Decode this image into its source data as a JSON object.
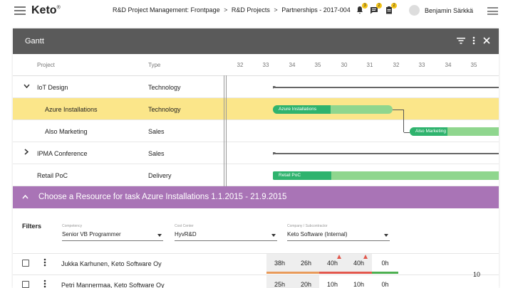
{
  "app": {
    "logo": "Keto",
    "logo_mark": "®",
    "breadcrumb": [
      "R&D Project Management: Frontpage",
      ">",
      "R&D Projects",
      ">",
      "Partnerships - 2017-004"
    ],
    "notifications": [
      {
        "icon": "bell-icon",
        "count": "3"
      },
      {
        "icon": "chat-icon",
        "count": "2"
      },
      {
        "icon": "clipboard-icon",
        "count": "2"
      }
    ],
    "user_name": "Benjamin Särkkä"
  },
  "gantt": {
    "title": "Gantt",
    "columns": {
      "project": "Project",
      "type": "Type"
    },
    "weeks": [
      "32",
      "33",
      "34",
      "35",
      "30",
      "31",
      "32",
      "33",
      "34",
      "35"
    ],
    "rows": [
      {
        "name": "IoT Design",
        "type": "Technology",
        "expander": "⌄"
      },
      {
        "name": "Azure Installations",
        "type": "Technology",
        "selected": true
      },
      {
        "name": "Also Marketing",
        "type": "Sales"
      },
      {
        "name": "IPMA Conference",
        "type": "Sales",
        "expander": "›"
      },
      {
        "name": "Retail PoC",
        "type": "Delivery"
      }
    ],
    "bars": {
      "azure": {
        "label": "Azure Installations",
        "progress": 0.48
      },
      "marketing": {
        "label": "Also Marketing",
        "progress": 0.42
      },
      "retail": {
        "label": "Retail PoC",
        "progress": 0.26
      }
    },
    "colors": {
      "header": "#5a5a5a",
      "selected_row": "#fbe68a",
      "bar_done": "#2fb36e",
      "bar_todo": "#8fd68e"
    }
  },
  "chooser": {
    "title": "Choose a Resource for task Azure Installations 1.1.2015 - 21.9.2015",
    "color": "#a974b6",
    "filters_label": "Filters",
    "competency": {
      "caption": "Competency",
      "value": "Senior VB Programmer"
    },
    "cost_center": {
      "caption": "Cost Center",
      "value": "HyvR&D"
    },
    "company": {
      "caption": "Company / Subcontractor",
      "value": "Keto Software (Internal)"
    }
  },
  "resources": [
    {
      "name": "Jukka Karhunen, Keto Software Oy",
      "hours": [
        "38h",
        "26h",
        "40h",
        "40h",
        "0h"
      ]
    },
    {
      "name": "Petri Mannermaa, Keto Software Oy",
      "hours": [
        "25h",
        "20h",
        "10h",
        "10h",
        "0h"
      ]
    }
  ],
  "page_number": "10"
}
